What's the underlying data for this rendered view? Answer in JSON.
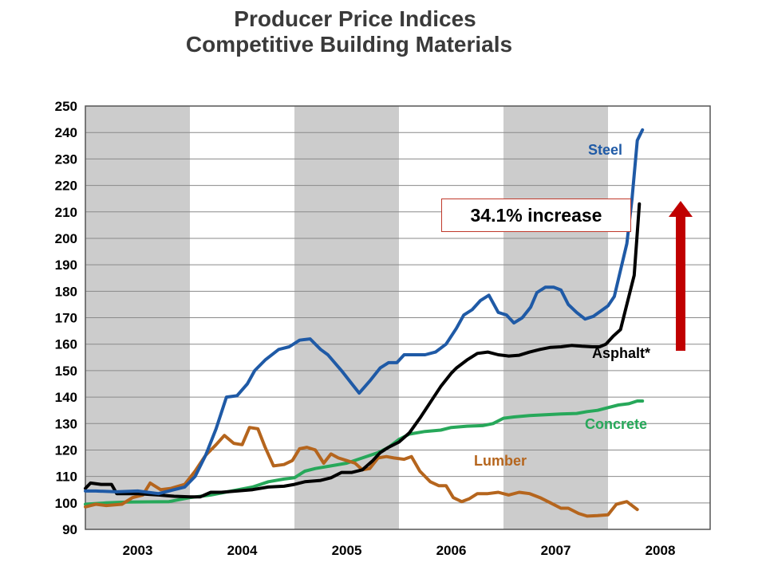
{
  "chart_data": {
    "type": "line",
    "title": "Producer Price Indices",
    "subtitle": "Competitive Building Materials",
    "xlabel": "",
    "ylabel": "",
    "ylim": [
      90,
      250
    ],
    "y_ticks": [
      90,
      100,
      110,
      120,
      130,
      140,
      150,
      160,
      170,
      180,
      190,
      200,
      210,
      220,
      230,
      240,
      250
    ],
    "x_years": [
      "2003",
      "2004",
      "2005",
      "2006",
      "2007",
      "2008"
    ],
    "xlim": [
      2003.0,
      2008.333
    ],
    "shaded_years": [
      "2003",
      "2005",
      "2007"
    ],
    "grid": true,
    "annotation": "34.1% increase",
    "colors": {
      "steel": "#1f5aa6",
      "asphalt": "#000000",
      "concrete": "#27a85a",
      "lumber": "#b5651d",
      "arrow": "#c00000",
      "shade": "#cccccc"
    },
    "series": [
      {
        "name": "Steel",
        "key": "steel",
        "points": [
          [
            2003.0,
            104.5
          ],
          [
            2003.1,
            104.5
          ],
          [
            2003.3,
            104.2
          ],
          [
            2003.5,
            104.5
          ],
          [
            2003.7,
            103.5
          ],
          [
            2003.85,
            105
          ],
          [
            2003.95,
            106
          ],
          [
            2004.05,
            110
          ],
          [
            2004.15,
            118
          ],
          [
            2004.25,
            128
          ],
          [
            2004.35,
            140
          ],
          [
            2004.45,
            140.5
          ],
          [
            2004.55,
            145
          ],
          [
            2004.62,
            150
          ],
          [
            2004.72,
            154
          ],
          [
            2004.85,
            158
          ],
          [
            2004.95,
            159
          ],
          [
            2005.05,
            161.5
          ],
          [
            2005.15,
            162
          ],
          [
            2005.25,
            158
          ],
          [
            2005.32,
            156
          ],
          [
            2005.45,
            150
          ],
          [
            2005.55,
            145
          ],
          [
            2005.62,
            141.5
          ],
          [
            2005.72,
            146
          ],
          [
            2005.82,
            151
          ],
          [
            2005.9,
            153
          ],
          [
            2005.98,
            153
          ],
          [
            2006.05,
            156
          ],
          [
            2006.15,
            156
          ],
          [
            2006.25,
            156
          ],
          [
            2006.35,
            157
          ],
          [
            2006.45,
            160
          ],
          [
            2006.55,
            166
          ],
          [
            2006.62,
            171
          ],
          [
            2006.7,
            173
          ],
          [
            2006.78,
            176.5
          ],
          [
            2006.86,
            178.5
          ],
          [
            2006.95,
            172
          ],
          [
            2007.03,
            171
          ],
          [
            2007.1,
            168
          ],
          [
            2007.18,
            170
          ],
          [
            2007.26,
            174
          ],
          [
            2007.32,
            179.5
          ],
          [
            2007.4,
            181.5
          ],
          [
            2007.48,
            181.5
          ],
          [
            2007.55,
            180.5
          ],
          [
            2007.62,
            175
          ],
          [
            2007.7,
            172
          ],
          [
            2007.78,
            169.5
          ],
          [
            2007.86,
            170.5
          ],
          [
            2007.93,
            172.5
          ],
          [
            2008.0,
            174.5
          ],
          [
            2008.06,
            178
          ],
          [
            2008.12,
            188
          ],
          [
            2008.18,
            198
          ],
          [
            2008.23,
            215
          ],
          [
            2008.28,
            237
          ],
          [
            2008.33,
            241
          ]
        ]
      },
      {
        "name": "Asphalt*",
        "key": "asphalt",
        "points": [
          [
            2003.0,
            105.5
          ],
          [
            2003.05,
            107.5
          ],
          [
            2003.15,
            107
          ],
          [
            2003.25,
            107
          ],
          [
            2003.3,
            103.5
          ],
          [
            2003.5,
            103.5
          ],
          [
            2003.7,
            103
          ],
          [
            2003.85,
            102.5
          ],
          [
            2004.0,
            102.3
          ],
          [
            2004.1,
            102.3
          ],
          [
            2004.2,
            104
          ],
          [
            2004.3,
            104
          ],
          [
            2004.45,
            104.5
          ],
          [
            2004.6,
            105
          ],
          [
            2004.75,
            106
          ],
          [
            2004.9,
            106.3
          ],
          [
            2005.0,
            107
          ],
          [
            2005.1,
            108
          ],
          [
            2005.25,
            108.5
          ],
          [
            2005.35,
            109.5
          ],
          [
            2005.45,
            111.5
          ],
          [
            2005.55,
            111.5
          ],
          [
            2005.65,
            112.5
          ],
          [
            2005.75,
            116
          ],
          [
            2005.82,
            119
          ],
          [
            2005.9,
            121
          ],
          [
            2006.0,
            123
          ],
          [
            2006.1,
            126.5
          ],
          [
            2006.2,
            132
          ],
          [
            2006.3,
            138
          ],
          [
            2006.4,
            144
          ],
          [
            2006.5,
            149
          ],
          [
            2006.55,
            151
          ],
          [
            2006.65,
            154
          ],
          [
            2006.75,
            156.5
          ],
          [
            2006.85,
            157
          ],
          [
            2006.95,
            156
          ],
          [
            2007.05,
            155.5
          ],
          [
            2007.15,
            155.8
          ],
          [
            2007.25,
            157
          ],
          [
            2007.35,
            158
          ],
          [
            2007.45,
            158.8
          ],
          [
            2007.55,
            159
          ],
          [
            2007.65,
            159.5
          ],
          [
            2007.75,
            159.2
          ],
          [
            2007.85,
            159
          ],
          [
            2007.92,
            159
          ],
          [
            2007.98,
            160
          ],
          [
            2008.05,
            163
          ],
          [
            2008.12,
            165.5
          ],
          [
            2008.18,
            175
          ],
          [
            2008.25,
            186
          ],
          [
            2008.3,
            213
          ]
        ]
      },
      {
        "name": "Concrete",
        "key": "concrete",
        "points": [
          [
            2003.0,
            99.5
          ],
          [
            2003.2,
            100
          ],
          [
            2003.4,
            100.3
          ],
          [
            2003.6,
            100.4
          ],
          [
            2003.8,
            100.5
          ],
          [
            2004.0,
            102
          ],
          [
            2004.2,
            103
          ],
          [
            2004.4,
            104.5
          ],
          [
            2004.6,
            106
          ],
          [
            2004.75,
            108
          ],
          [
            2004.9,
            109
          ],
          [
            2005.0,
            109.5
          ],
          [
            2005.1,
            112
          ],
          [
            2005.2,
            113
          ],
          [
            2005.35,
            114
          ],
          [
            2005.5,
            115
          ],
          [
            2005.65,
            117
          ],
          [
            2005.8,
            119
          ],
          [
            2005.9,
            121
          ],
          [
            2006.0,
            124
          ],
          [
            2006.1,
            126
          ],
          [
            2006.25,
            127
          ],
          [
            2006.4,
            127.5
          ],
          [
            2006.5,
            128.5
          ],
          [
            2006.65,
            129
          ],
          [
            2006.8,
            129.2
          ],
          [
            2006.9,
            130
          ],
          [
            2007.0,
            132
          ],
          [
            2007.1,
            132.5
          ],
          [
            2007.25,
            133
          ],
          [
            2007.4,
            133.3
          ],
          [
            2007.55,
            133.6
          ],
          [
            2007.7,
            133.8
          ],
          [
            2007.8,
            134.5
          ],
          [
            2007.9,
            135
          ],
          [
            2008.0,
            136
          ],
          [
            2008.1,
            137
          ],
          [
            2008.2,
            137.5
          ],
          [
            2008.28,
            138.5
          ],
          [
            2008.33,
            138.5
          ]
        ]
      },
      {
        "name": "Lumber",
        "key": "lumber",
        "points": [
          [
            2003.0,
            98.5
          ],
          [
            2003.1,
            99.5
          ],
          [
            2003.2,
            99
          ],
          [
            2003.35,
            99.5
          ],
          [
            2003.45,
            102
          ],
          [
            2003.55,
            103
          ],
          [
            2003.62,
            107.5
          ],
          [
            2003.72,
            105
          ],
          [
            2003.82,
            105.5
          ],
          [
            2003.95,
            107
          ],
          [
            2004.05,
            112
          ],
          [
            2004.15,
            118
          ],
          [
            2004.25,
            122
          ],
          [
            2004.33,
            125.5
          ],
          [
            2004.42,
            122.5
          ],
          [
            2004.5,
            122
          ],
          [
            2004.57,
            128.5
          ],
          [
            2004.65,
            128
          ],
          [
            2004.72,
            121
          ],
          [
            2004.8,
            114
          ],
          [
            2004.9,
            114.5
          ],
          [
            2004.98,
            116
          ],
          [
            2005.05,
            120.5
          ],
          [
            2005.12,
            121
          ],
          [
            2005.2,
            120
          ],
          [
            2005.28,
            115
          ],
          [
            2005.35,
            118.5
          ],
          [
            2005.42,
            117
          ],
          [
            2005.5,
            116
          ],
          [
            2005.58,
            115
          ],
          [
            2005.65,
            112.5
          ],
          [
            2005.72,
            113
          ],
          [
            2005.8,
            117
          ],
          [
            2005.88,
            117.5
          ],
          [
            2005.95,
            117
          ],
          [
            2006.05,
            116.5
          ],
          [
            2006.12,
            117.5
          ],
          [
            2006.2,
            112
          ],
          [
            2006.3,
            108
          ],
          [
            2006.38,
            106.5
          ],
          [
            2006.45,
            106.5
          ],
          [
            2006.52,
            102
          ],
          [
            2006.6,
            100.5
          ],
          [
            2006.67,
            101.5
          ],
          [
            2006.75,
            103.5
          ],
          [
            2006.85,
            103.5
          ],
          [
            2006.95,
            104
          ],
          [
            2007.05,
            103
          ],
          [
            2007.15,
            104
          ],
          [
            2007.25,
            103.5
          ],
          [
            2007.35,
            102
          ],
          [
            2007.45,
            100
          ],
          [
            2007.55,
            98
          ],
          [
            2007.62,
            98
          ],
          [
            2007.72,
            96
          ],
          [
            2007.8,
            95
          ],
          [
            2007.9,
            95.2
          ],
          [
            2008.0,
            95.5
          ],
          [
            2008.08,
            99.5
          ],
          [
            2008.18,
            100.5
          ],
          [
            2008.28,
            97.5
          ]
        ]
      }
    ]
  }
}
